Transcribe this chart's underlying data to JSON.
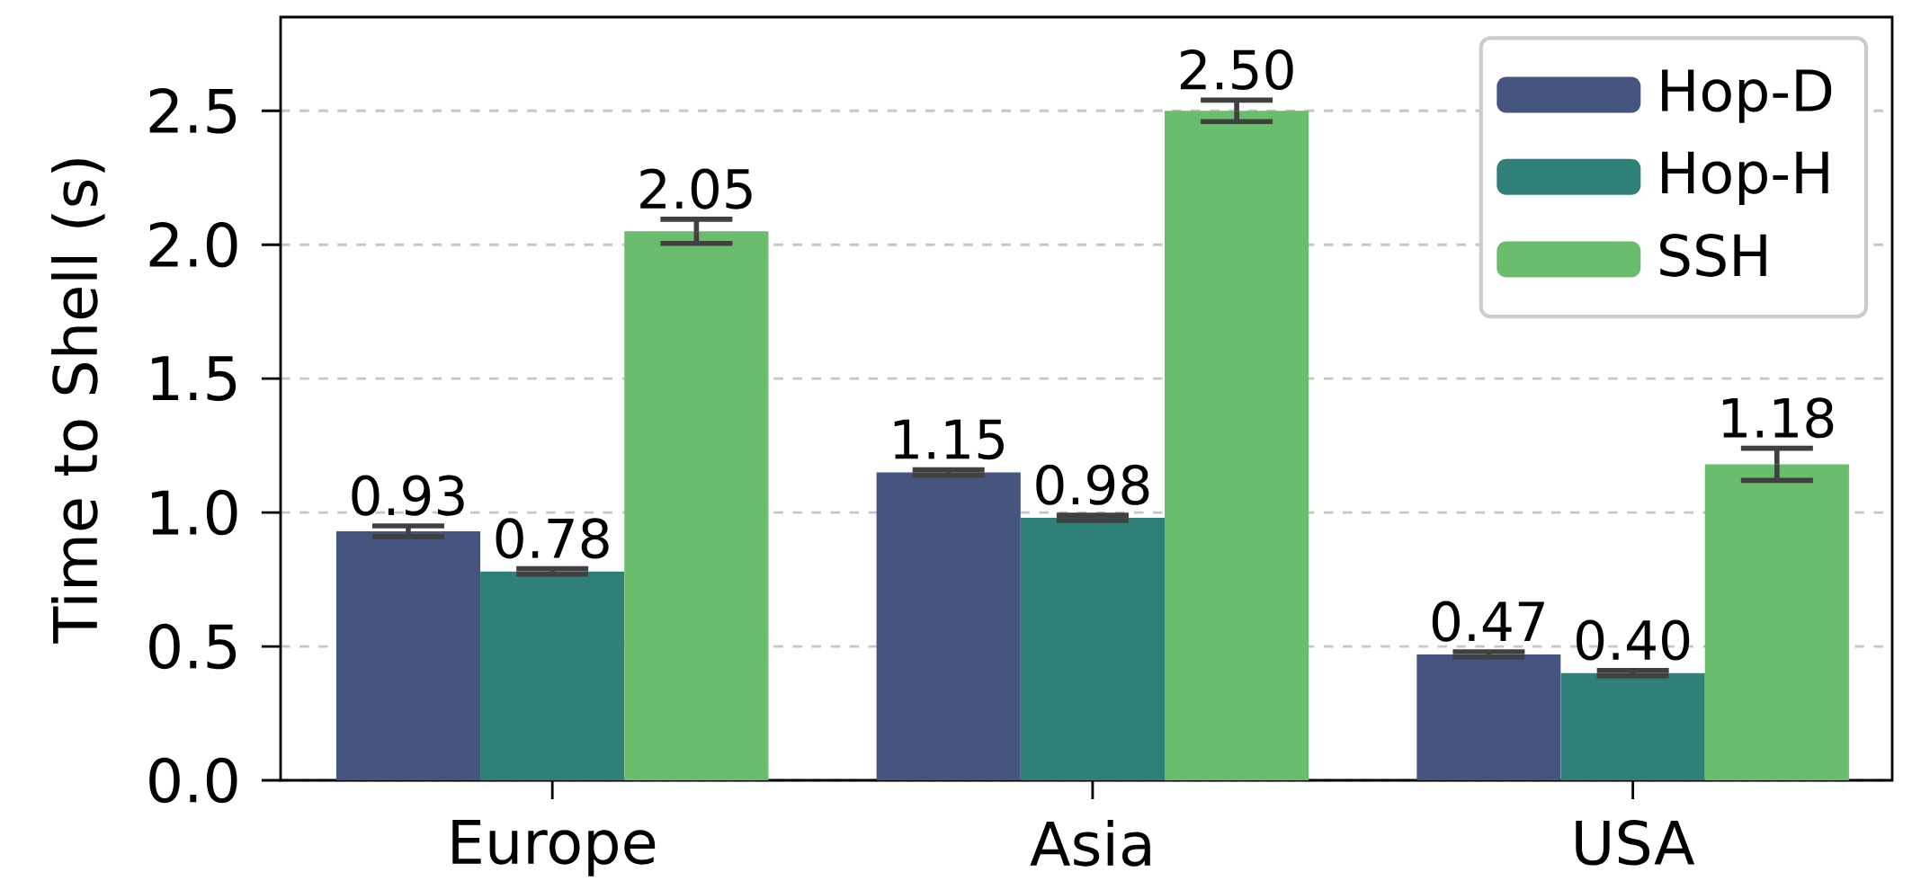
{
  "chart_data": {
    "type": "bar",
    "ylabel": "Time to Shell (s)",
    "categories": [
      "Europe",
      "Asia",
      "USA"
    ],
    "series": [
      {
        "name": "Hop-D",
        "color": "#465580",
        "values": [
          0.93,
          1.15,
          0.47
        ],
        "errors": [
          0.02,
          0.01,
          0.01
        ],
        "value_labels": [
          "0.93",
          "1.15",
          "0.47"
        ]
      },
      {
        "name": "Hop-H",
        "color": "#2e8079",
        "values": [
          0.78,
          0.98,
          0.4
        ],
        "errors": [
          0.01,
          0.01,
          0.01
        ],
        "value_labels": [
          "0.78",
          "0.98",
          "0.40"
        ]
      },
      {
        "name": "SSH",
        "color": "#6bbd6e",
        "values": [
          2.05,
          2.5,
          1.18
        ],
        "errors": [
          0.045,
          0.04,
          0.06
        ],
        "value_labels": [
          "2.05",
          "2.50",
          "1.18"
        ]
      }
    ],
    "ylim": [
      0,
      2.85
    ],
    "yticks": [
      {
        "value": 0,
        "label": "0.0"
      },
      0.5,
      {
        "value": 1,
        "label": "1.0"
      },
      1.5,
      {
        "value": 2,
        "label": "2.0"
      },
      2.5
    ],
    "grid": "y",
    "legend": "top right"
  }
}
